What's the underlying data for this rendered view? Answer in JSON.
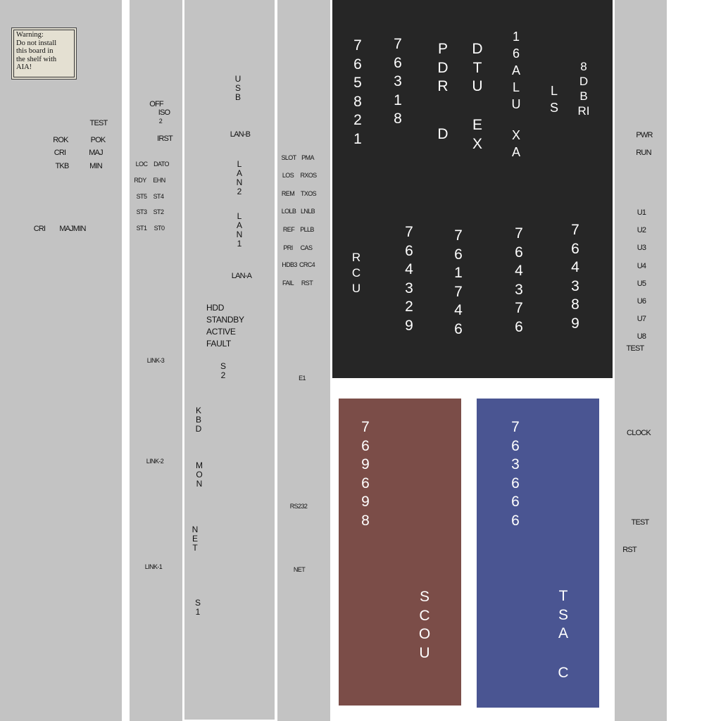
{
  "colors": {
    "panel": "#c3c3c3",
    "dark_module": "#262626",
    "scou_module": "#7b4d48",
    "tsac_module": "#4a5592"
  },
  "panel1": {
    "warning": "Warning:\nDo not install\nthis board in\nthe shelf with\nAIA!",
    "test": "TEST",
    "rok": "ROK",
    "pok": "POK",
    "cri": "CRI",
    "maj": "MAJ",
    "tkb": "TKB",
    "min": "MIN",
    "cri2": "CRI",
    "majmin": "MAJMIN"
  },
  "panel2": {
    "off": "OFF",
    "iso": "ISO",
    "two": "2",
    "irst": "IRST",
    "loc": "LOC",
    "dato": "DATO",
    "rdy": "RDY",
    "ehn": "EHN",
    "st5": "ST5",
    "st4": "ST4",
    "st3": "ST3",
    "st2": "ST2",
    "st1": "ST1",
    "st0": "ST0",
    "link3": "LINK-3",
    "link2": "LINK-2",
    "link1": "LINK-1"
  },
  "panel3": {
    "usb": "USB",
    "lanb": "LAN-B",
    "lan2": "LAN2",
    "lan1": "LAN1",
    "lana": "LAN-A",
    "status": "HDD\nSTANDBY\nACTIVE\nFAULT",
    "s2": "S2",
    "kbd": "KBD",
    "mon": "MON",
    "net": "NET",
    "s1": "S1"
  },
  "panel4": {
    "slot": "SLOT",
    "pma": "PMA",
    "los": "LOS",
    "rxos": "RXOS",
    "rem": "REM",
    "txos": "TXOS",
    "lolb": "LOLB",
    "lnlb": "LNLB",
    "ref": "REF",
    "pllb": "PLLB",
    "pri": "PRI",
    "cas": "CAS",
    "hdb3": "HDB3",
    "crc4": "CRC4",
    "fail": "FAIL",
    "rst": "RST",
    "e1": "E1",
    "rs232": "RS232",
    "net": "NET"
  },
  "dark": {
    "c1": "765821",
    "c2": "76318",
    "pdr": "PDR",
    "d": "D",
    "dtu": "DTU",
    "ex": "EX",
    "alu": "16ALU",
    "xa": "XA",
    "ls": "LS",
    "dbri": "8DBRI",
    "rcu": "RCU",
    "c3": "764329",
    "c4": "761746",
    "c5": "764376",
    "c6": "764389"
  },
  "scou": {
    "code": "769698",
    "name": "SCOU"
  },
  "tsac": {
    "code": "763666",
    "name1": "TSA",
    "name2": "C"
  },
  "right": {
    "pwr": "PWR",
    "run": "RUN",
    "u": [
      "U1",
      "U2",
      "U3",
      "U4",
      "U5",
      "U6",
      "U7",
      "U8"
    ],
    "test1": "TEST",
    "clock": "CLOCK",
    "test2": "TEST",
    "rst": "RST"
  }
}
